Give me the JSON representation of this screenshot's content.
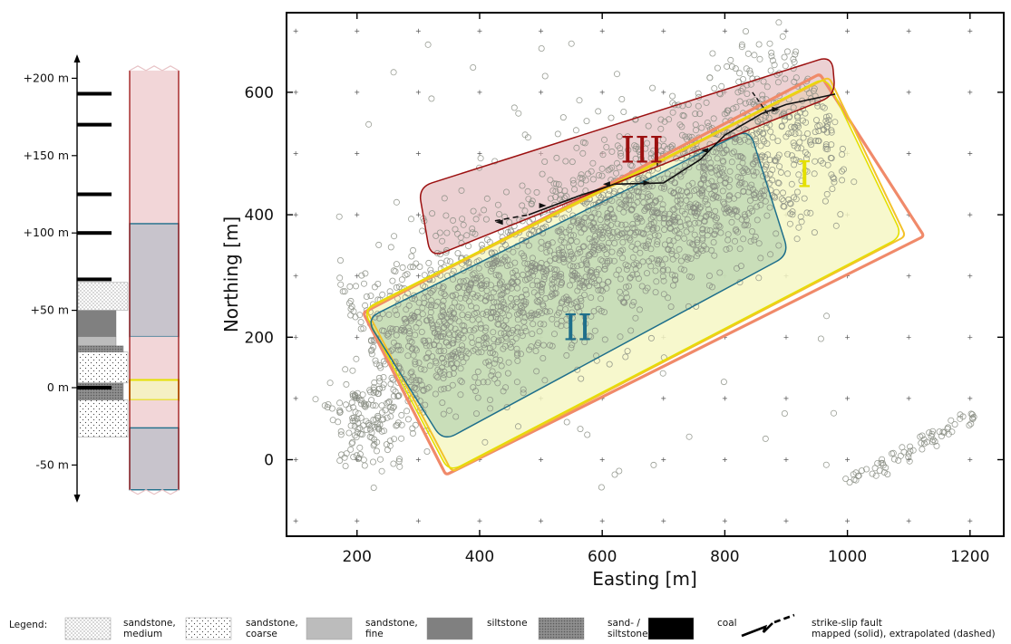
{
  "colors": {
    "zone_I": "#e4e000",
    "zone_I_fill": "#f6f7c4",
    "zone_II": "#1f6f8b",
    "zone_II_fill": "#b9d6b2",
    "zone_III": "#9c1010",
    "zone_III_fill": "#dfb2b6",
    "outline_orange": "#f08a6a",
    "outline_yellow": "#f3c22b",
    "points": "#888d82",
    "column_band": "#f2d6d8",
    "column_gray": "#c8c4cc"
  },
  "stratigraphy": {
    "labels": [
      "+200 m",
      "+150 m",
      "+100 m",
      "+50 m",
      "0 m",
      "-50 m"
    ],
    "ticks": [
      200,
      150,
      100,
      50,
      0,
      -50
    ],
    "coal_seams": [
      190,
      170,
      125,
      100,
      70,
      0
    ],
    "lithology": [
      {
        "type": "sandstone-medium",
        "top": 68,
        "bottom": 50
      },
      {
        "type": "siltstone",
        "top": 50,
        "bottom": 33
      },
      {
        "type": "sandstone-fine",
        "top": 33,
        "bottom": 27
      },
      {
        "type": "sand-siltstone",
        "top": 27,
        "bottom": 23
      },
      {
        "type": "sandstone-coarse",
        "top": 23,
        "bottom": 3
      },
      {
        "type": "sand-siltstone",
        "top": 3,
        "bottom": -8
      },
      {
        "type": "sandstone-coarse",
        "top": -8,
        "bottom": -32
      }
    ],
    "zone_column": [
      {
        "zone": "III",
        "top": 205,
        "bottom": 106
      },
      {
        "zone": "II",
        "top": 106,
        "bottom": 33
      },
      {
        "zone": "III",
        "top": 33,
        "bottom": 5
      },
      {
        "zone": "I",
        "top": 5,
        "bottom": -8
      },
      {
        "zone": "III",
        "top": -8,
        "bottom": -26
      },
      {
        "zone": "II",
        "top": -26,
        "bottom": -66
      }
    ]
  },
  "chart_data": {
    "type": "scatter",
    "xlabel": "Easting [m]",
    "ylabel": "Northing [m]",
    "xlim": [
      85,
      1255
    ],
    "ylim": [
      -125,
      730
    ],
    "xticks": [
      200,
      400,
      600,
      800,
      1000,
      1200
    ],
    "yticks": [
      0,
      200,
      400,
      600
    ],
    "grid": "plus markers at 100 m spacing",
    "zones": [
      {
        "label": "I",
        "corners": [
          [
            210,
            245
          ],
          [
            965,
            625
          ],
          [
            1090,
            365
          ],
          [
            350,
            -20
          ]
        ]
      },
      {
        "label": "II",
        "corners": [
          [
            215,
            230
          ],
          [
            840,
            540
          ],
          [
            905,
            335
          ],
          [
            340,
            30
          ]
        ]
      },
      {
        "label": "III",
        "corners": [
          [
            300,
            445
          ],
          [
            975,
            660
          ],
          [
            980,
            595
          ],
          [
            320,
            330
          ]
        ]
      }
    ],
    "zone_label_positions": [
      {
        "label": "I",
        "x": 930,
        "y": 445
      },
      {
        "label": "II",
        "x": 560,
        "y": 195
      },
      {
        "label": "III",
        "x": 665,
        "y": 485
      }
    ],
    "fault_solid": [
      [
        480,
        400
      ],
      [
        560,
        430
      ],
      [
        620,
        450
      ],
      [
        700,
        452
      ],
      [
        760,
        490
      ],
      [
        800,
        530
      ],
      [
        860,
        565
      ],
      [
        900,
        580
      ],
      [
        980,
        597
      ]
    ],
    "fault_dashed": [
      [
        425,
        390
      ],
      [
        480,
        400
      ]
    ],
    "fault_arrows": [
      {
        "x": 435,
        "y": 388,
        "dir": "left"
      },
      {
        "x": 500,
        "y": 415,
        "dir": "right"
      },
      {
        "x": 610,
        "y": 450,
        "dir": "left"
      },
      {
        "x": 670,
        "y": 452,
        "dir": "right"
      },
      {
        "x": 770,
        "y": 505,
        "dir": "left"
      },
      {
        "x": 880,
        "y": 572,
        "dir": "right"
      }
    ],
    "fault_splays": [
      {
        "from": [
          690,
          520
        ],
        "to": [
          690,
          480
        ]
      },
      {
        "from": [
          845,
          600
        ],
        "to": [
          870,
          565
        ]
      }
    ],
    "point_clusters": [
      {
        "type": "band",
        "from": [
          220,
          175
        ],
        "to": [
          960,
          590
        ],
        "width": 150,
        "count": 1450
      },
      {
        "type": "band",
        "from": [
          270,
          130
        ],
        "to": [
          880,
          470
        ],
        "width": 120,
        "count": 650
      },
      {
        "type": "blob",
        "cx": 220,
        "cy": 70,
        "sx": 60,
        "sy": 80,
        "count": 160
      },
      {
        "type": "band",
        "from": [
          1000,
          -40
        ],
        "to": [
          1210,
          75
        ],
        "width": 14,
        "count": 70
      },
      {
        "type": "uniform",
        "xmin": 150,
        "xmax": 980,
        "ymin": -60,
        "ymax": 680,
        "count": 90
      }
    ]
  },
  "legend": {
    "title": "Legend:",
    "items": [
      {
        "key": "sandstone-medium",
        "label": "sandstone, medium"
      },
      {
        "key": "sandstone-coarse",
        "label": "sandstone, coarse"
      },
      {
        "key": "sandstone-fine",
        "label": "sandstone, fine"
      },
      {
        "key": "siltstone",
        "label": "siltstone"
      },
      {
        "key": "sand-siltstone",
        "label": "sand- / siltstone"
      },
      {
        "key": "coal",
        "label": "coal"
      },
      {
        "key": "fault",
        "label": "strike-slip fault mapped (solid), extrapolated  (dashed)"
      }
    ]
  }
}
